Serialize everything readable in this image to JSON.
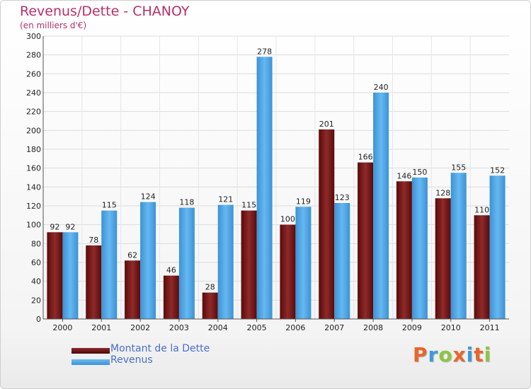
{
  "title": "Revenus/Dette - CHANOY",
  "subtitle": "(en milliers d'€)",
  "chart_data": {
    "type": "bar",
    "categories": [
      "2000",
      "2001",
      "2002",
      "2003",
      "2004",
      "2005",
      "2006",
      "2007",
      "2008",
      "2009",
      "2010",
      "2011"
    ],
    "series": [
      {
        "name": "Montant de la Dette",
        "color": "#7a1414",
        "values": [
          92,
          78,
          62,
          46,
          28,
          115,
          100,
          201,
          166,
          146,
          128,
          110
        ]
      },
      {
        "name": "Revenus",
        "color": "#4aa3e6",
        "values": [
          92,
          115,
          124,
          118,
          121,
          278,
          119,
          123,
          240,
          150,
          155,
          152
        ]
      }
    ],
    "ylim": [
      0,
      300
    ],
    "ytick_step": 20,
    "grid": true,
    "legend": "bottom-left"
  },
  "legend": {
    "debt_label": "Montant de la Dette",
    "revenue_label": "Revenus"
  },
  "logo": {
    "text": "Proxiti",
    "colors": [
      "#e8662a",
      "#3a9bd9",
      "#8cc63f",
      "#e8662a",
      "#3a9bd9",
      "#e8662a",
      "#8cc63f"
    ]
  }
}
